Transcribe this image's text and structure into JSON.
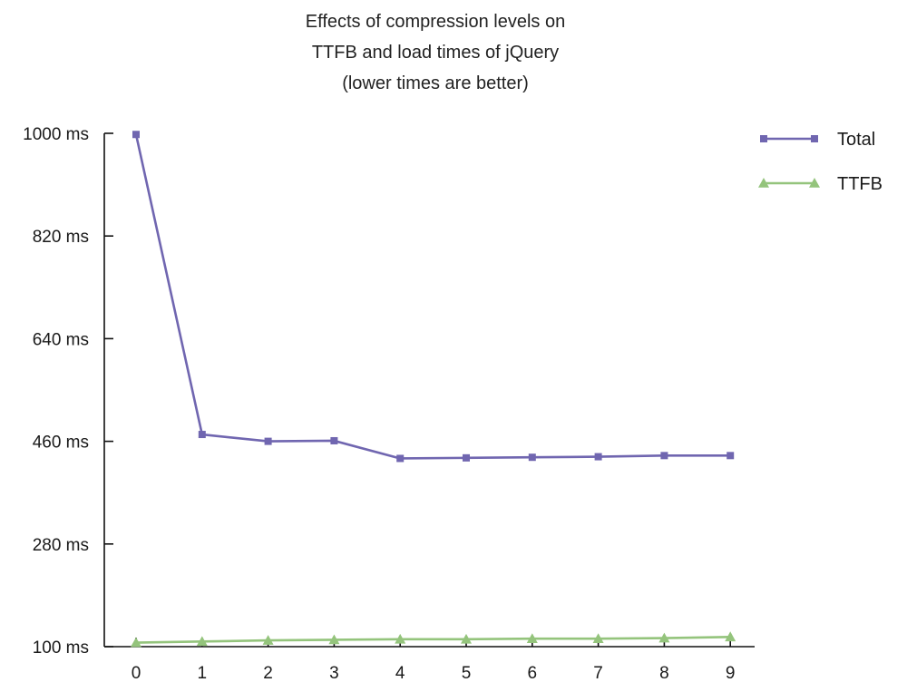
{
  "chart_data": {
    "type": "line",
    "title_lines": [
      "Effects of compression levels on",
      "TTFB and load times of jQuery",
      "(lower times are better)"
    ],
    "xlabel": "",
    "ylabel": "",
    "categories": [
      "0",
      "1",
      "2",
      "3",
      "4",
      "5",
      "6",
      "7",
      "8",
      "9"
    ],
    "y_ticks": [
      {
        "value": 100,
        "label": "100 ms"
      },
      {
        "value": 280,
        "label": "280 ms"
      },
      {
        "value": 460,
        "label": "460 ms"
      },
      {
        "value": 640,
        "label": "640 ms"
      },
      {
        "value": 820,
        "label": "820 ms"
      },
      {
        "value": 1000,
        "label": "1000 ms"
      }
    ],
    "ylim": [
      100,
      1000
    ],
    "grid": false,
    "legend_position": "top-right",
    "series": [
      {
        "name": "Total",
        "marker": "square",
        "color": "#7066b0",
        "values": [
          998,
          472,
          460,
          461,
          430,
          431,
          432,
          433,
          435,
          435
        ]
      },
      {
        "name": "TTFB",
        "marker": "triangle",
        "color": "#94c47c",
        "values": [
          107,
          109,
          111,
          112,
          113,
          113,
          114,
          114,
          115,
          117
        ]
      }
    ]
  }
}
